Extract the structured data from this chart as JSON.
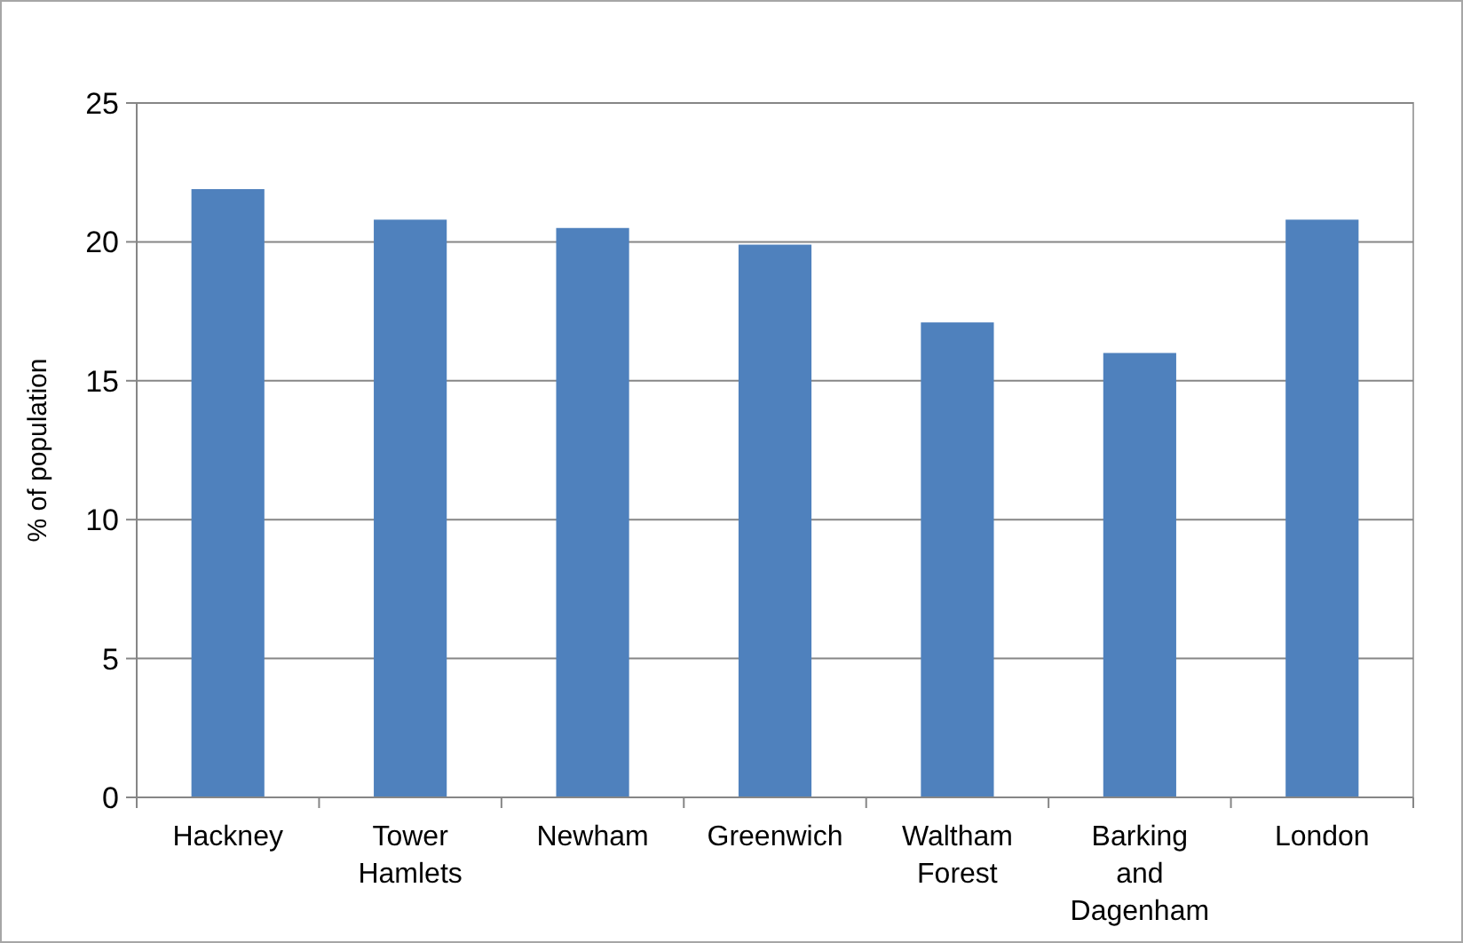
{
  "chart_data": {
    "type": "bar",
    "ylabel": "% of population",
    "categories": [
      "Hackney",
      "Tower Hamlets",
      "Newham",
      "Greenwich",
      "Waltham Forest",
      "Barking and Dagenham",
      "London"
    ],
    "values": [
      21.9,
      20.8,
      20.5,
      19.9,
      17.1,
      16.0,
      20.8
    ],
    "color": "#4f81bd",
    "ylim": [
      0,
      25
    ],
    "yticks": [
      0,
      5,
      10,
      15,
      20,
      25
    ],
    "grid": "y"
  }
}
